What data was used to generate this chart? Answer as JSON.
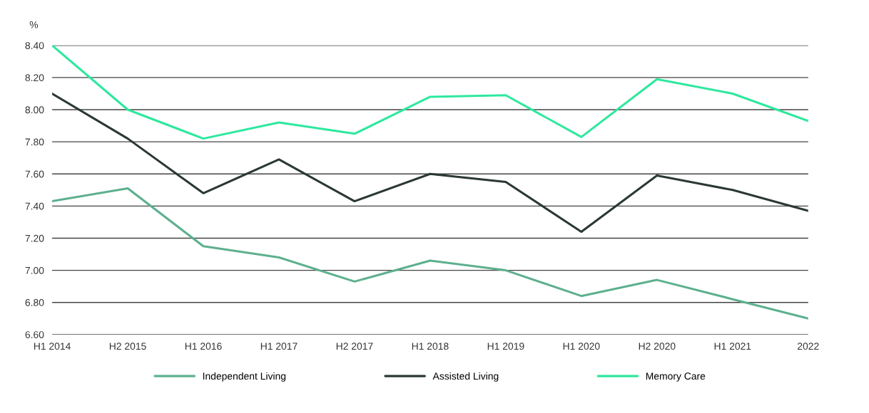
{
  "chart_data": {
    "type": "line",
    "ylabel": "%",
    "categories": [
      "H1 2014",
      "H2 2015",
      "H1 2016",
      "H1 2017",
      "H2 2017",
      "H1 2018",
      "H1 2019",
      "H1 2020",
      "H2 2020",
      "H1 2021",
      "2022"
    ],
    "series": [
      {
        "name": "Independent Living",
        "color": "#5db08e",
        "values": [
          7.43,
          7.51,
          7.15,
          7.08,
          6.93,
          7.06,
          7.0,
          6.84,
          6.94,
          6.82,
          6.7
        ]
      },
      {
        "name": "Assisted Living",
        "color": "#2b3833",
        "values": [
          8.1,
          7.82,
          7.48,
          7.69,
          7.43,
          7.6,
          7.55,
          7.24,
          7.59,
          7.5,
          7.37
        ]
      },
      {
        "name": "Memory Care",
        "color": "#2ee89e",
        "values": [
          8.4,
          8.0,
          7.82,
          7.92,
          7.85,
          8.08,
          8.09,
          7.83,
          8.19,
          8.1,
          7.93
        ]
      }
    ],
    "ylim": [
      6.6,
      8.4
    ],
    "yticks": [
      {
        "value": 6.6,
        "label": "6.60"
      },
      {
        "value": 6.8,
        "label": "6.80"
      },
      {
        "value": 7.0,
        "label": "7.00"
      },
      {
        "value": 7.2,
        "label": "7.20"
      },
      {
        "value": 7.4,
        "label": "7.40"
      },
      {
        "value": 7.6,
        "label": "7.60"
      },
      {
        "value": 7.8,
        "label": "7.80"
      },
      {
        "value": 8.0,
        "label": "8.00"
      },
      {
        "value": 8.2,
        "label": "8.20"
      },
      {
        "value": 8.4,
        "label": "8.40"
      }
    ],
    "grid": "y",
    "legend": "bottom",
    "marker": "none",
    "line_style": "solid"
  }
}
